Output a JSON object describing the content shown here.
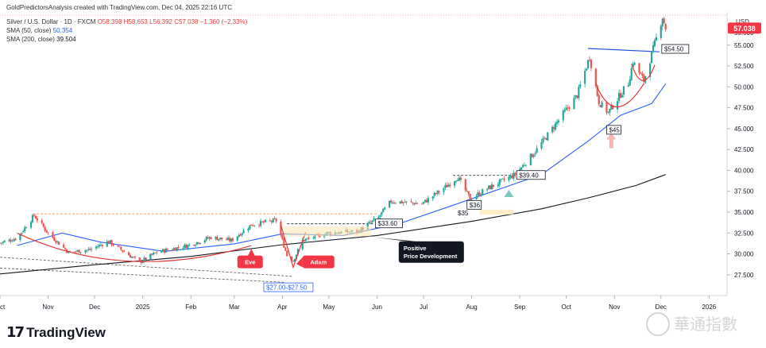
{
  "header": {
    "caption": "GoldPredictorsAnalysis created with TradingView.com, Dec 04, 2025 22:16 UTC",
    "symbol_line": "Silver / U.S. Dollar · 1D · FXCM",
    "ohlc": "O58.398 H58.653 L56.392 C57.038 −1.360 (−2.33%)",
    "sma50_label": "SMA (50, close)",
    "sma50_value": "50.354",
    "sma200_label": "SMA (200, close)",
    "sma200_value": "39.504",
    "currency": "USD"
  },
  "branding": {
    "logo_text": "TradingView",
    "watermark": "華通指數"
  },
  "colors": {
    "up": "#26a69a",
    "down": "#ef5350",
    "sma50": "#2962ff",
    "sma200": "#131722",
    "price_tag": "#f23645",
    "pattern_red": "#e53935",
    "resistance": "#1e53e5"
  },
  "chart_data": {
    "type": "candlestick",
    "symbol": "XAGUSD",
    "timeframe": "1D",
    "x_start": "2024-10-01",
    "x_end": "2026-01-08",
    "ylim": [
      25.2,
      58.5
    ],
    "y_ticks": [
      27.5,
      30,
      32.5,
      35,
      37.5,
      40,
      42.5,
      45,
      47.5,
      50,
      52.5,
      55
    ],
    "top_tick_label": "58.000",
    "x_tick_labels": [
      {
        "date": "2024-10-01",
        "label": "Oct"
      },
      {
        "date": "2024-11-01",
        "label": "Nov"
      },
      {
        "date": "2024-12-01",
        "label": "Dec"
      },
      {
        "date": "2025-01-01",
        "label": "2025"
      },
      {
        "date": "2025-02-01",
        "label": "Feb"
      },
      {
        "date": "2025-03-01",
        "label": "Mar"
      },
      {
        "date": "2025-04-01",
        "label": "Apr"
      },
      {
        "date": "2025-05-01",
        "label": "May"
      },
      {
        "date": "2025-06-01",
        "label": "Jun"
      },
      {
        "date": "2025-07-01",
        "label": "Jul"
      },
      {
        "date": "2025-08-01",
        "label": "Aug"
      },
      {
        "date": "2025-09-01",
        "label": "Sep"
      },
      {
        "date": "2025-10-01",
        "label": "Oct"
      },
      {
        "date": "2025-11-01",
        "label": "Nov"
      },
      {
        "date": "2025-12-01",
        "label": "Dec"
      },
      {
        "date": "2026-01-01",
        "label": "2026"
      }
    ],
    "price_path": [
      {
        "date": "2024-10-01",
        "close": 31.3
      },
      {
        "date": "2024-10-12",
        "close": 31.9
      },
      {
        "date": "2024-10-23",
        "close": 34.6
      },
      {
        "date": "2024-11-01",
        "close": 32.5
      },
      {
        "date": "2024-11-14",
        "close": 30.2
      },
      {
        "date": "2024-11-28",
        "close": 30.5
      },
      {
        "date": "2024-12-10",
        "close": 31.5
      },
      {
        "date": "2024-12-30",
        "close": 29.0
      },
      {
        "date": "2025-01-10",
        "close": 30.2
      },
      {
        "date": "2025-01-30",
        "close": 31.0
      },
      {
        "date": "2025-02-14",
        "close": 32.0
      },
      {
        "date": "2025-02-27",
        "close": 31.6
      },
      {
        "date": "2025-03-12",
        "close": 33.5
      },
      {
        "date": "2025-03-28",
        "close": 34.0
      },
      {
        "date": "2025-04-04",
        "close": 29.8
      },
      {
        "date": "2025-04-08",
        "close": 29.2
      },
      {
        "date": "2025-04-14",
        "close": 31.6
      },
      {
        "date": "2025-04-30",
        "close": 32.5
      },
      {
        "date": "2025-05-20",
        "close": 32.7
      },
      {
        "date": "2025-06-02",
        "close": 34.4
      },
      {
        "date": "2025-06-10",
        "close": 36.3
      },
      {
        "date": "2025-06-30",
        "close": 36.0
      },
      {
        "date": "2025-07-15",
        "close": 38.0
      },
      {
        "date": "2025-07-23",
        "close": 39.2
      },
      {
        "date": "2025-07-31",
        "close": 36.6
      },
      {
        "date": "2025-08-12",
        "close": 37.9
      },
      {
        "date": "2025-08-29",
        "close": 39.5
      },
      {
        "date": "2025-09-12",
        "close": 42.5
      },
      {
        "date": "2025-09-26",
        "close": 46.0
      },
      {
        "date": "2025-10-08",
        "close": 49.0
      },
      {
        "date": "2025-10-16",
        "close": 53.6
      },
      {
        "date": "2025-10-22",
        "close": 48.2
      },
      {
        "date": "2025-10-28",
        "close": 46.9
      },
      {
        "date": "2025-11-10",
        "close": 50.5
      },
      {
        "date": "2025-11-13",
        "close": 53.0
      },
      {
        "date": "2025-11-20",
        "close": 50.7
      },
      {
        "date": "2025-11-28",
        "close": 55.8
      },
      {
        "date": "2025-12-02",
        "close": 58.4
      },
      {
        "date": "2025-12-04",
        "close": 57.04
      }
    ],
    "sma50_path": [
      {
        "date": "2024-10-12",
        "value": 31.0
      },
      {
        "date": "2024-11-10",
        "value": 32.5
      },
      {
        "date": "2024-12-05",
        "value": 31.4
      },
      {
        "date": "2025-01-15",
        "value": 30.3
      },
      {
        "date": "2025-03-01",
        "value": 31.2
      },
      {
        "date": "2025-04-01",
        "value": 32.4
      },
      {
        "date": "2025-05-10",
        "value": 32.2
      },
      {
        "date": "2025-06-15",
        "value": 33.6
      },
      {
        "date": "2025-07-15",
        "value": 35.5
      },
      {
        "date": "2025-08-15",
        "value": 37.5
      },
      {
        "date": "2025-09-15",
        "value": 39.5
      },
      {
        "date": "2025-10-15",
        "value": 43.5
      },
      {
        "date": "2025-11-05",
        "value": 46.6
      },
      {
        "date": "2025-11-25",
        "value": 48.0
      },
      {
        "date": "2025-12-04",
        "value": 50.354
      }
    ],
    "sma200_path": [
      {
        "date": "2024-10-01",
        "value": 27.6
      },
      {
        "date": "2024-12-01",
        "value": 28.7
      },
      {
        "date": "2025-02-01",
        "value": 29.7
      },
      {
        "date": "2025-04-01",
        "value": 31.1
      },
      {
        "date": "2025-06-01",
        "value": 32.2
      },
      {
        "date": "2025-08-01",
        "value": 33.9
      },
      {
        "date": "2025-09-15",
        "value": 35.4
      },
      {
        "date": "2025-10-15",
        "value": 36.7
      },
      {
        "date": "2025-11-15",
        "value": 38.2
      },
      {
        "date": "2025-12-04",
        "value": 39.504
      }
    ],
    "last_price": 57.038,
    "annotations": {
      "level_33_60": "$33.60",
      "level_39_40": "$39.40",
      "level_36": "$36",
      "level_35": "$35",
      "level_45": "$45",
      "level_54_50": "$54.50",
      "range_label": "$27.00-$27.50",
      "eve_label": "Eve",
      "adam_label": "Adam",
      "positive_line1": "Positive",
      "positive_line2": "Price Development"
    }
  }
}
